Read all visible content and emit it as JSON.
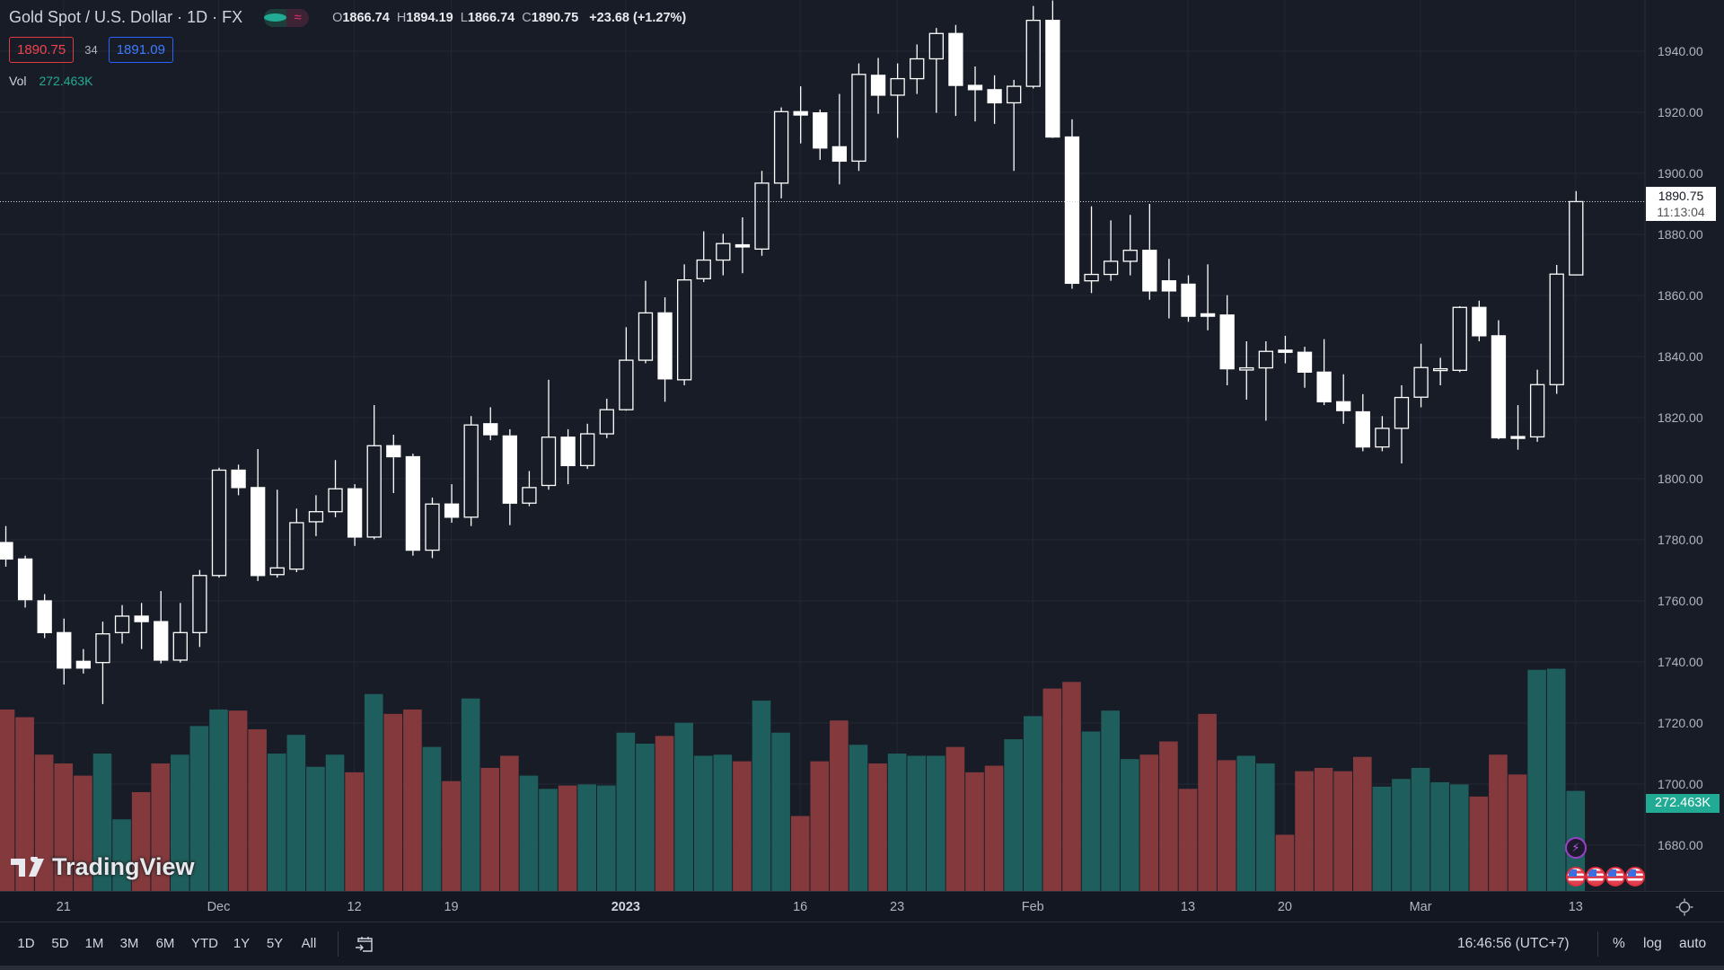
{
  "header": {
    "title": "Gold Spot / U.S. Dollar · 1D · FX",
    "ohlc": {
      "o_label": "O",
      "o": "1866.74",
      "h_label": "H",
      "h": "1894.19",
      "l_label": "L",
      "l": "1866.74",
      "c_label": "C",
      "c": "1890.75",
      "change": "+23.68 (+1.27%)"
    },
    "bid": "1890.75",
    "spread": "34",
    "ask": "1891.09",
    "toggle_icon": "wave-icon",
    "vol_label": "Vol",
    "vol_value": "272.463K"
  },
  "colors": {
    "bg": "#181c27",
    "up_volume": "#1e5f5d",
    "down_volume": "#843a3d",
    "candle": "#ffffff",
    "grid": "#232733",
    "accent": "#22ab94"
  },
  "price_axis": {
    "ticks": [
      "1940.00",
      "1920.00",
      "1900.00",
      "1880.00",
      "1860.00",
      "1840.00",
      "1820.00",
      "1800.00",
      "1780.00",
      "1760.00",
      "1740.00",
      "1720.00",
      "1700.00",
      "1680.00"
    ],
    "current_price": "1890.75",
    "countdown": "11:13:04",
    "volume_label": "272.463K"
  },
  "time_axis": {
    "labels": [
      {
        "text": "21",
        "i": 3
      },
      {
        "text": "Dec",
        "i": 11
      },
      {
        "text": "12",
        "i": 18
      },
      {
        "text": "19",
        "i": 23
      },
      {
        "text": "2023",
        "i": 32,
        "bold": true
      },
      {
        "text": "16",
        "i": 41
      },
      {
        "text": "23",
        "i": 46
      },
      {
        "text": "Feb",
        "i": 53
      },
      {
        "text": "13",
        "i": 61
      },
      {
        "text": "20",
        "i": 66
      },
      {
        "text": "Mar",
        "i": 73
      },
      {
        "text": "13",
        "i": 81
      }
    ]
  },
  "chart_data": {
    "type": "candlestick",
    "symbol": "XAUUSD",
    "interval": "1D",
    "ylim": [
      1670,
      1960
    ],
    "current": 1890.75,
    "ohlc": [
      [
        1779.1,
        1784.5,
        1771.2,
        1773.7
      ],
      [
        1773.7,
        1774.8,
        1757.8,
        1760.4
      ],
      [
        1760,
        1762.2,
        1747.8,
        1749.6
      ],
      [
        1749.6,
        1754.2,
        1732.6,
        1738
      ],
      [
        1740.2,
        1744.2,
        1736.2,
        1738
      ],
      [
        1739.8,
        1753.2,
        1726.2,
        1749.2
      ],
      [
        1749.6,
        1758.6,
        1746,
        1755
      ],
      [
        1755,
        1759.3,
        1744.2,
        1753.2
      ],
      [
        1753.2,
        1763.2,
        1739.5,
        1740.6
      ],
      [
        1740.6,
        1759.3,
        1739.8,
        1749.6
      ],
      [
        1749.6,
        1770.1,
        1744.9,
        1768.3
      ],
      [
        1768.3,
        1803.6,
        1767.6,
        1802.8
      ],
      [
        1802.8,
        1804.6,
        1794.6,
        1797.1
      ],
      [
        1797.1,
        1809.7,
        1766.5,
        1768.3
      ],
      [
        1768.6,
        1796.4,
        1767.6,
        1770.8
      ],
      [
        1770.4,
        1790.2,
        1769.4,
        1785.6
      ],
      [
        1785.9,
        1794.6,
        1781.2,
        1789.2
      ],
      [
        1789.2,
        1806.1,
        1787.4,
        1796.7
      ],
      [
        1796.7,
        1798.2,
        1778,
        1780.9
      ],
      [
        1780.9,
        1824.1,
        1780.2,
        1810.8
      ],
      [
        1810.8,
        1814.4,
        1795.3,
        1807.2
      ],
      [
        1807.2,
        1808.2,
        1774.8,
        1776.6
      ],
      [
        1776.6,
        1793.8,
        1774,
        1791.7
      ],
      [
        1791.7,
        1798.2,
        1785.6,
        1787.4
      ],
      [
        1787.4,
        1820.5,
        1784.5,
        1817.6
      ],
      [
        1818,
        1823.4,
        1812.6,
        1814.4
      ],
      [
        1814,
        1816.2,
        1784.8,
        1792
      ],
      [
        1792,
        1802.5,
        1791,
        1797.1
      ],
      [
        1797.8,
        1832.4,
        1796.4,
        1813.6
      ],
      [
        1813.6,
        1816.2,
        1798.2,
        1804.3
      ],
      [
        1804.3,
        1818,
        1803.2,
        1814.7
      ],
      [
        1814.7,
        1826.2,
        1813.3,
        1822.6
      ],
      [
        1822.6,
        1849.6,
        1822.3,
        1838.8
      ],
      [
        1838.8,
        1864.8,
        1837.8,
        1854.3
      ],
      [
        1854.3,
        1859.4,
        1825.2,
        1832.7
      ],
      [
        1832.4,
        1870.2,
        1830.6,
        1865.1
      ],
      [
        1865.5,
        1881,
        1864.4,
        1871.6
      ],
      [
        1871.6,
        1880.2,
        1866.6,
        1877
      ],
      [
        1876.6,
        1885.6,
        1867.3,
        1875.9
      ],
      [
        1875.2,
        1900.8,
        1873,
        1896.8
      ],
      [
        1896.8,
        1921.6,
        1891.8,
        1920.2
      ],
      [
        1920.2,
        1928.5,
        1909.8,
        1919.1
      ],
      [
        1919.8,
        1920.9,
        1904.4,
        1908.3
      ],
      [
        1908.7,
        1926,
        1896.4,
        1904
      ],
      [
        1904,
        1936,
        1900.8,
        1932.4
      ],
      [
        1932.1,
        1937.8,
        1919.5,
        1925.6
      ],
      [
        1925.6,
        1936,
        1911.6,
        1931
      ],
      [
        1931,
        1942.2,
        1926,
        1937.5
      ],
      [
        1937.5,
        1947.6,
        1919.8,
        1945.8
      ],
      [
        1945.8,
        1948.6,
        1918.8,
        1928.8
      ],
      [
        1928.8,
        1935,
        1917,
        1927.4
      ],
      [
        1927.4,
        1932.1,
        1916.2,
        1923.1
      ],
      [
        1923.1,
        1930.6,
        1900.8,
        1928.5
      ],
      [
        1928.5,
        1954.8,
        1927.8,
        1950.1
      ],
      [
        1950.1,
        1956.6,
        1911.6,
        1911.9
      ],
      [
        1911.9,
        1917.7,
        1862.2,
        1864
      ],
      [
        1864.8,
        1889.2,
        1860.8,
        1866.9
      ],
      [
        1866.9,
        1884.6,
        1864.8,
        1871.2
      ],
      [
        1871.2,
        1886.4,
        1866.6,
        1874.8
      ],
      [
        1874.8,
        1890,
        1858.6,
        1861.5
      ],
      [
        1864.8,
        1872,
        1852.5,
        1861.5
      ],
      [
        1863.7,
        1866.6,
        1851.4,
        1853.2
      ],
      [
        1854,
        1870.2,
        1848.6,
        1853.2
      ],
      [
        1853.6,
        1860.1,
        1830.6,
        1836
      ],
      [
        1835.6,
        1845,
        1825.9,
        1836.3
      ],
      [
        1836.3,
        1845,
        1819,
        1841.7
      ],
      [
        1842.1,
        1846.8,
        1837.8,
        1841.4
      ],
      [
        1841.4,
        1843.2,
        1829.8,
        1834.9
      ],
      [
        1834.9,
        1845.7,
        1824.1,
        1825.2
      ],
      [
        1825.2,
        1834.2,
        1818,
        1822.3
      ],
      [
        1821.9,
        1827.7,
        1809,
        1810.4
      ],
      [
        1810.4,
        1820.5,
        1809,
        1816.5
      ],
      [
        1816.5,
        1830.6,
        1805,
        1826.6
      ],
      [
        1826.7,
        1844.2,
        1823.4,
        1836.4
      ],
      [
        1835.6,
        1839.6,
        1830.6,
        1836
      ],
      [
        1835.5,
        1856.5,
        1834.9,
        1856.1
      ],
      [
        1856.1,
        1858.3,
        1845,
        1846.8
      ],
      [
        1846.8,
        1851.9,
        1812.9,
        1813.4
      ],
      [
        1813.8,
        1824.1,
        1809.5,
        1813.4
      ],
      [
        1813.7,
        1835.7,
        1812.1,
        1830.8
      ],
      [
        1830.8,
        1870,
        1827.8,
        1867
      ],
      [
        1866.74,
        1894.19,
        1866.74,
        1890.75
      ]
    ],
    "volume_k": [
      494,
      473,
      371,
      347,
      314,
      374,
      195,
      269,
      347,
      371,
      449,
      494,
      491,
      440,
      374,
      425,
      338,
      371,
      323,
      536,
      482,
      494,
      392,
      299,
      524,
      335,
      368,
      314,
      278,
      287,
      290,
      287,
      431,
      401,
      422,
      458,
      368,
      371,
      353,
      518,
      431,
      204,
      353,
      464,
      398,
      347,
      374,
      368,
      368,
      392,
      323,
      341,
      413,
      476,
      551,
      569,
      434,
      491,
      359,
      371,
      407,
      278,
      482,
      356,
      368,
      347,
      153,
      326,
      335,
      326,
      365,
      284,
      305,
      335,
      296,
      290,
      257,
      371,
      317,
      602,
      605,
      272.463
    ]
  },
  "markers": {
    "event": "lightning-icon",
    "flags": [
      "us-flag-icon",
      "us-flag-icon",
      "us-flag-icon",
      "us-flag-icon"
    ]
  },
  "logo": {
    "text": "TradingView"
  },
  "bottom": {
    "ranges": [
      "1D",
      "5D",
      "1M",
      "3M",
      "6M",
      "YTD",
      "1Y",
      "5Y",
      "All"
    ],
    "time": "16:46:56 (UTC+7)",
    "percent": "%",
    "log": "log",
    "auto": "auto"
  }
}
